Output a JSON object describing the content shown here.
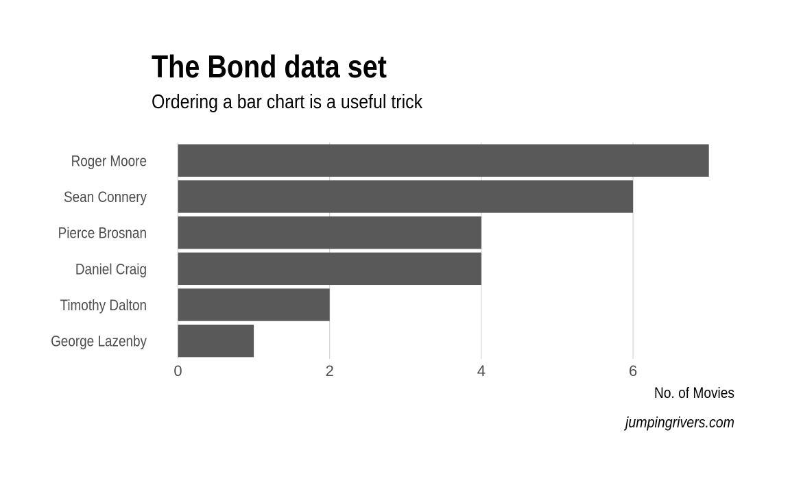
{
  "chart_data": {
    "type": "bar",
    "orientation": "horizontal",
    "title": "The Bond data set",
    "subtitle": "Ordering a bar chart is a useful trick",
    "categories": [
      "Roger Moore",
      "Sean Connery",
      "Pierce Brosnan",
      "Daniel Craig",
      "Timothy Dalton",
      "George Lazenby"
    ],
    "values": [
      7,
      6,
      4,
      4,
      2,
      1
    ],
    "xlabel": "No. of Movies",
    "ylabel": "",
    "xlim": [
      0,
      7.5
    ],
    "xticks": [
      0,
      2,
      4,
      6
    ],
    "grid": "vertical major",
    "caption": "jumpingrivers.com",
    "bar_color": "#595959",
    "grid_color": "#cccccc"
  }
}
